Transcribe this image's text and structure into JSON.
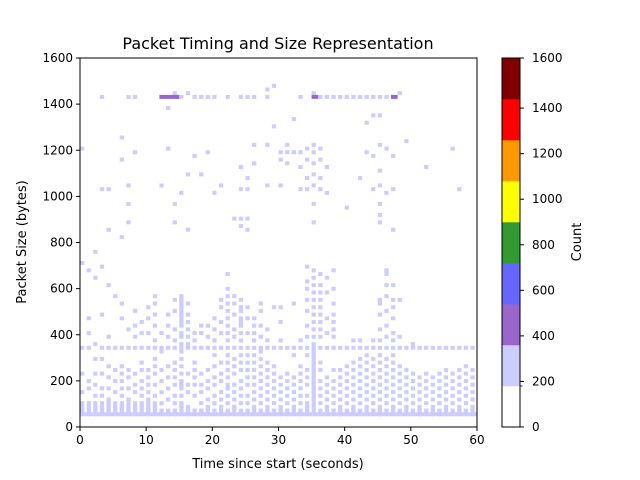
{
  "chart_data": {
    "type": "heatmap",
    "title": "Packet Timing and Size Representation",
    "xlabel": "Time since start (seconds)",
    "ylabel": "Packet Size (bytes)",
    "xlim": [
      0,
      60
    ],
    "ylim": [
      0,
      1600
    ],
    "x_ticks": [
      0,
      10,
      20,
      30,
      40,
      50,
      60
    ],
    "y_ticks": [
      0,
      200,
      400,
      600,
      800,
      1000,
      1200,
      1400,
      1600
    ],
    "grid": false,
    "bin_width_seconds": 0.6,
    "bin_height_bytes": 16,
    "colorbar": {
      "label": "Count",
      "ticks": [
        0,
        200,
        400,
        600,
        800,
        1000,
        1200,
        1400,
        1600
      ],
      "boundaries": [
        0,
        180,
        360,
        540,
        720,
        900,
        1080,
        1260,
        1440,
        1600
      ],
      "colors": [
        "#ffffff",
        "#ccccff",
        "#9966cc",
        "#6666ff",
        "#339933",
        "#ffff00",
        "#ff9900",
        "#ff0000",
        "#800000"
      ]
    },
    "cells": [
      {
        "t": 0,
        "sizes": [
          48,
          64,
          80,
          96,
          144,
          224,
          336,
          704,
          1200
        ]
      },
      {
        "t": 1,
        "sizes": [
          48,
          64,
          80,
          96,
          160,
          192,
          336,
          400,
          464,
          672
        ]
      },
      {
        "t": 2,
        "sizes": [
          48,
          64,
          80,
          96,
          128,
          176,
          224,
          288,
          352,
          640,
          752
        ]
      },
      {
        "t": 3,
        "sizes": [
          48,
          64,
          80,
          96,
          128,
          160,
          224,
          288,
          336,
          480,
          688,
          1024,
          1424
        ]
      },
      {
        "t": 4,
        "sizes": [
          48,
          64,
          80,
          96,
          112,
          160,
          208,
          256,
          336,
          384,
          608,
          848,
          1024
        ]
      },
      {
        "t": 5,
        "sizes": [
          48,
          64,
          80,
          96,
          144,
          192,
          240,
          336,
          560
        ]
      },
      {
        "t": 6,
        "sizes": [
          48,
          64,
          80,
          96,
          128,
          160,
          192,
          224,
          256,
          336,
          464,
          528,
          816,
          1152,
          1248
        ]
      },
      {
        "t": 7,
        "sizes": [
          48,
          64,
          80,
          96,
          112,
          160,
          208,
          240,
          336,
          416,
          880,
          960,
          1040,
          1424
        ]
      },
      {
        "t": 8,
        "sizes": [
          48,
          64,
          80,
          96,
          144,
          176,
          224,
          336,
          384,
          432,
          496,
          1184,
          1424
        ]
      },
      {
        "t": 9,
        "sizes": [
          48,
          64,
          80,
          96,
          128,
          160,
          192,
          240,
          272,
          336,
          400,
          448
        ]
      },
      {
        "t": 10,
        "sizes": [
          48,
          64,
          80,
          96,
          112,
          144,
          176,
          208,
          240,
          336,
          400,
          464,
          512
        ]
      },
      {
        "t": 11,
        "sizes": [
          48,
          64,
          80,
          96,
          128,
          176,
          224,
          256,
          288,
          336,
          368,
          432,
          480,
          528,
          560
        ]
      },
      {
        "t": 12,
        "sizes": [
          48,
          64,
          96,
          144,
          192,
          240,
          320,
          336,
          400,
          1040,
          1424
        ]
      },
      {
        "t": 13,
        "sizes": [
          48,
          64,
          112,
          160,
          208,
          256,
          336,
          384,
          432,
          480,
          1200,
          1376
        ]
      },
      {
        "t": 14,
        "sizes": [
          48,
          64,
          96,
          128,
          176,
          208,
          240,
          272,
          336,
          368,
          416,
          496,
          544,
          880,
          960,
          1440
        ]
      },
      {
        "t": 15,
        "sizes": [
          48,
          64,
          80,
          96,
          128,
          160,
          176,
          192,
          224,
          256,
          288,
          320,
          336,
          352,
          384,
          400,
          432,
          448,
          464,
          480,
          496,
          512,
          528,
          544,
          560,
          1008,
          1424
        ]
      },
      {
        "t": 16,
        "sizes": [
          48,
          64,
          80,
          144,
          176,
          224,
          336,
          352,
          384,
          416,
          448,
          480,
          528,
          848,
          1088,
          1440
        ]
      },
      {
        "t": 17,
        "sizes": [
          48,
          64,
          128,
          176,
          208,
          240,
          272,
          336,
          368,
          400,
          1168,
          1424
        ]
      },
      {
        "t": 18,
        "sizes": [
          48,
          64,
          96,
          144,
          176,
          224,
          336,
          400,
          432,
          1088,
          1424
        ]
      },
      {
        "t": 19,
        "sizes": [
          48,
          64,
          80,
          112,
          160,
          192,
          240,
          336,
          384,
          432,
          1184,
          1424
        ]
      },
      {
        "t": 20,
        "sizes": [
          48,
          64,
          96,
          128,
          176,
          208,
          256,
          304,
          336,
          368,
          416,
          464,
          1008,
          1424
        ]
      },
      {
        "t": 21,
        "sizes": [
          48,
          64,
          80,
          112,
          144,
          192,
          224,
          272,
          336,
          400,
          448,
          512,
          544,
          1040
        ]
      },
      {
        "t": 22,
        "sizes": [
          48,
          64,
          96,
          128,
          160,
          176,
          208,
          240,
          272,
          304,
          336,
          368,
          400,
          432,
          464,
          496,
          528,
          560,
          592,
          656,
          1424
        ]
      },
      {
        "t": 23,
        "sizes": [
          48,
          64,
          80,
          112,
          144,
          176,
          224,
          256,
          288,
          336,
          384,
          416,
          480,
          528,
          560,
          896
        ]
      },
      {
        "t": 24,
        "sizes": [
          48,
          64,
          96,
          128,
          160,
          192,
          240,
          272,
          304,
          336,
          368,
          400,
          432,
          448,
          464,
          496,
          512,
          544,
          864,
          896,
          1024,
          1120,
          1424
        ]
      },
      {
        "t": 25,
        "sizes": [
          48,
          64,
          96,
          128,
          176,
          208,
          240,
          272,
          304,
          336,
          400,
          464,
          512,
          848,
          896,
          1024,
          1072,
          1424
        ]
      },
      {
        "t": 26,
        "sizes": [
          48,
          64,
          80,
          112,
          144,
          176,
          208,
          240,
          272,
          304,
          336,
          368,
          400,
          432,
          464,
          1136,
          1216,
          1424
        ]
      },
      {
        "t": 27,
        "sizes": [
          48,
          64,
          96,
          128,
          160,
          192,
          224,
          256,
          288,
          320,
          336,
          384,
          432,
          496,
          528
        ]
      },
      {
        "t": 28,
        "sizes": [
          48,
          64,
          80,
          112,
          144,
          176,
          208,
          240,
          272,
          336,
          368,
          416,
          1040,
          1216,
          1424,
          1456
        ]
      },
      {
        "t": 29,
        "sizes": [
          48,
          64,
          96,
          128,
          160,
          192,
          224,
          256,
          336,
          512,
          1296,
          1472
        ]
      },
      {
        "t": 30,
        "sizes": [
          48,
          64,
          80,
          112,
          144,
          176,
          208,
          336,
          368,
          448,
          512,
          1040,
          1152,
          1184
        ]
      },
      {
        "t": 31,
        "sizes": [
          48,
          64,
          96,
          128,
          160,
          192,
          224,
          336,
          1136,
          1184,
          1216
        ]
      },
      {
        "t": 32,
        "sizes": [
          48,
          64,
          80,
          112,
          144,
          176,
          208,
          304,
          336,
          528,
          1184,
          1328
        ]
      },
      {
        "t": 33,
        "sizes": [
          48,
          64,
          96,
          128,
          160,
          192,
          224,
          256,
          336,
          368,
          1024,
          1120,
          1184,
          1424
        ]
      },
      {
        "t": 34,
        "sizes": [
          48,
          64,
          80,
          96,
          128,
          176,
          208,
          240,
          304,
          336,
          384,
          432,
          496,
          544,
          592,
          624,
          688,
          1024,
          1072,
          1152,
          1200
        ]
      },
      {
        "t": 35,
        "sizes": [
          48,
          64,
          80,
          96,
          112,
          128,
          144,
          160,
          176,
          192,
          208,
          224,
          240,
          256,
          272,
          288,
          304,
          320,
          336,
          352,
          384,
          416,
          448,
          480,
          512,
          544,
          576,
          608,
          640,
          672,
          880,
          960,
          1040,
          1088,
          1136,
          1184,
          1216,
          1440
        ]
      },
      {
        "t": 36,
        "sizes": [
          48,
          64,
          96,
          128,
          160,
          192,
          240,
          272,
          336,
          384,
          416,
          448,
          480,
          512,
          544,
          576,
          608,
          656,
          1024,
          1072,
          1152,
          1200,
          1424
        ]
      },
      {
        "t": 37,
        "sizes": [
          48,
          64,
          80,
          112,
          144,
          176,
          208,
          336,
          400,
          464,
          576,
          640,
          1008,
          1120,
          1424
        ]
      },
      {
        "t": 38,
        "sizes": [
          48,
          64,
          96,
          128,
          160,
          192,
          240,
          336,
          384,
          416,
          448,
          480,
          528,
          592,
          672,
          1424
        ]
      },
      {
        "t": 39,
        "sizes": [
          48,
          64,
          80,
          112,
          144,
          176,
          208,
          240,
          336,
          1424
        ]
      },
      {
        "t": 40,
        "sizes": [
          48,
          64,
          96,
          128,
          160,
          192,
          224,
          256,
          336,
          944,
          1424
        ]
      },
      {
        "t": 41,
        "sizes": [
          48,
          64,
          80,
          112,
          144,
          176,
          208,
          240,
          272,
          336,
          368,
          1424
        ]
      },
      {
        "t": 42,
        "sizes": [
          48,
          64,
          96,
          128,
          160,
          192,
          224,
          256,
          288,
          336,
          368,
          1072,
          1424
        ]
      },
      {
        "t": 43,
        "sizes": [
          48,
          64,
          80,
          112,
          144,
          176,
          208,
          240,
          272,
          304,
          336,
          1184,
          1312,
          1424
        ]
      },
      {
        "t": 44,
        "sizes": [
          48,
          64,
          96,
          128,
          160,
          192,
          224,
          256,
          288,
          336,
          368,
          1024,
          1168,
          1344,
          1424
        ]
      },
      {
        "t": 45,
        "sizes": [
          48,
          64,
          80,
          112,
          144,
          176,
          208,
          240,
          272,
          304,
          336,
          368,
          416,
          480,
          528,
          544,
          880,
          912,
          960,
          1040,
          1104,
          1216,
          1344,
          1424
        ]
      },
      {
        "t": 46,
        "sizes": [
          48,
          64,
          96,
          128,
          160,
          192,
          224,
          256,
          288,
          336,
          384,
          432,
          496,
          560,
          608,
          656,
          672,
          1008,
          1200,
          1424
        ]
      },
      {
        "t": 47,
        "sizes": [
          48,
          64,
          80,
          112,
          144,
          176,
          208,
          240,
          272,
          304,
          336,
          368,
          400,
          464,
          512,
          544,
          608,
          848,
          1024,
          1168,
          1424
        ]
      },
      {
        "t": 48,
        "sizes": [
          48,
          64,
          96,
          128,
          160,
          192,
          224,
          256,
          336,
          384,
          544,
          1440
        ]
      },
      {
        "t": 49,
        "sizes": [
          48,
          64,
          80,
          112,
          144,
          176,
          208,
          240,
          336,
          1232
        ]
      },
      {
        "t": 50,
        "sizes": [
          48,
          64,
          96,
          128,
          160,
          192,
          224,
          336,
          352
        ]
      },
      {
        "t": 51,
        "sizes": [
          48,
          64,
          80,
          112,
          144,
          176,
          208,
          336
        ]
      },
      {
        "t": 52,
        "sizes": [
          48,
          64,
          96,
          128,
          160,
          192,
          224,
          336,
          1120
        ]
      },
      {
        "t": 53,
        "sizes": [
          48,
          64,
          80,
          112,
          144,
          176,
          208,
          336
        ]
      },
      {
        "t": 54,
        "sizes": [
          48,
          64,
          96,
          128,
          160,
          192,
          224,
          336
        ]
      },
      {
        "t": 55,
        "sizes": [
          48,
          64,
          80,
          112,
          144,
          176,
          208,
          240,
          336
        ]
      },
      {
        "t": 56,
        "sizes": [
          48,
          64,
          96,
          128,
          160,
          192,
          224,
          336,
          1200
        ]
      },
      {
        "t": 57,
        "sizes": [
          48,
          64,
          80,
          112,
          144,
          176,
          208,
          240,
          336,
          1024
        ]
      },
      {
        "t": 58,
        "sizes": [
          48,
          64,
          96,
          128,
          160,
          192,
          224,
          256,
          336
        ]
      },
      {
        "t": 59,
        "sizes": [
          48,
          64,
          80,
          112,
          144,
          176,
          208,
          240,
          336
        ]
      }
    ],
    "dense_cells": [
      {
        "t0": 0,
        "t1": 60,
        "size": 48,
        "level": 1
      },
      {
        "t0": 12,
        "t1": 15,
        "size": 1424,
        "level": 2
      },
      {
        "t0": 35,
        "t1": 36,
        "size": 1424,
        "level": 2
      },
      {
        "t0": 47,
        "t1": 48,
        "size": 1424,
        "level": 2
      }
    ]
  }
}
